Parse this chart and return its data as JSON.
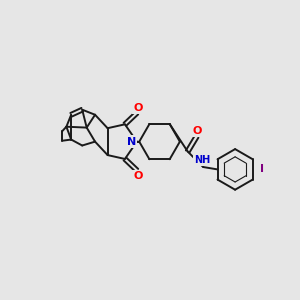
{
  "background_color": "#e6e6e6",
  "bond_color": "#1a1a1a",
  "bond_width": 1.4,
  "atom_colors": {
    "O": "#ff0000",
    "N": "#0000cd",
    "I": "#800080",
    "H": "#008080",
    "C": "#1a1a1a"
  },
  "figsize": [
    3.0,
    3.0
  ],
  "dpi": 100,
  "xlim": [
    0,
    10
  ],
  "ylim": [
    0,
    10
  ]
}
